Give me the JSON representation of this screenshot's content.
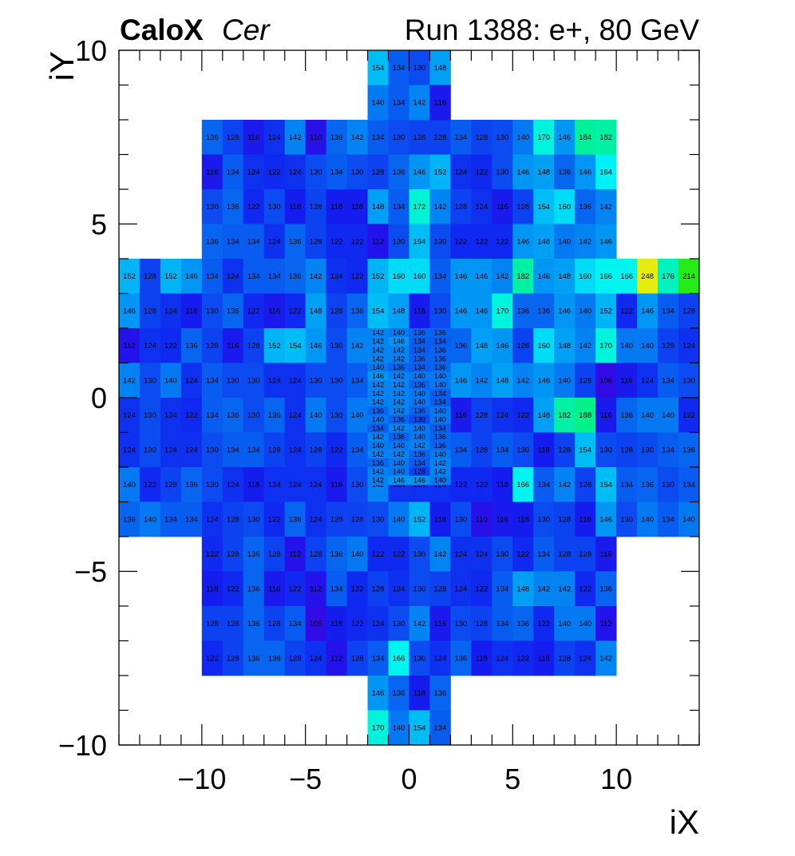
{
  "chart_data": {
    "type": "heatmap",
    "title_bold": "CaloX",
    "title_italic": "Cer",
    "title_right": "Run 1388: e+, 80 GeV",
    "xlabel": "iX",
    "ylabel": "iY",
    "xlim": [
      -14,
      14
    ],
    "ylim": [
      -10,
      10
    ],
    "xticks": [
      -10,
      -5,
      0,
      5,
      10
    ],
    "yticks": [
      -10,
      -5,
      0,
      5,
      10
    ],
    "xtick_labels": [
      "−10",
      "−5",
      "0",
      "5",
      "10"
    ],
    "ytick_labels": [
      "−10",
      "−5",
      "0",
      "5",
      "10"
    ],
    "color_range": [
      100,
      260
    ],
    "large_rows": [
      {
        "y": 7.5,
        "x0": -10,
        "values": [
          136,
          128,
          116,
          124,
          142,
          110,
          136,
          142,
          134,
          130,
          128,
          128,
          134,
          128,
          130,
          140,
          170,
          146,
          184,
          182
        ]
      },
      {
        "y": 6.5,
        "x0": -10,
        "values": [
          116,
          134,
          124,
          122,
          124,
          130,
          134,
          130,
          128,
          136,
          146,
          152,
          124,
          122,
          130,
          146,
          148,
          136,
          146,
          164
        ]
      },
      {
        "y": 5.5,
        "x0": -10,
        "values": [
          130,
          136,
          122,
          130,
          118,
          128,
          118,
          118,
          148,
          134,
          172,
          142,
          128,
          124,
          116,
          128,
          154,
          160,
          136,
          142
        ]
      },
      {
        "y": 4.5,
        "x0": -10,
        "values": [
          136,
          134,
          134,
          124,
          136,
          128,
          122,
          122,
          112,
          130,
          154,
          130,
          122,
          122,
          122,
          146,
          148,
          140,
          142,
          146
        ]
      },
      {
        "y": 3.5,
        "x0": -14,
        "values": [
          152,
          128,
          152,
          146,
          134,
          124,
          134,
          134,
          136,
          142,
          124,
          122,
          152,
          160,
          160,
          134,
          146,
          146,
          142,
          182,
          146,
          148,
          160,
          166,
          166,
          248,
          176,
          214
        ]
      },
      {
        "y": 2.5,
        "x0": -14,
        "values": [
          146,
          128,
          124,
          118,
          130,
          136,
          122,
          116,
          122,
          148,
          128,
          136,
          154,
          148,
          118,
          130,
          146,
          146,
          170,
          136,
          136,
          146,
          140,
          152,
          122,
          146,
          134,
          128
        ]
      },
      {
        "y": 1.5,
        "x0": -14,
        "values": [
          112,
          124,
          122,
          136,
          128,
          116,
          128,
          152,
          154,
          146,
          130,
          142,
          null,
          null,
          null,
          null,
          136,
          148,
          146,
          128,
          160,
          148,
          142,
          170,
          140,
          140,
          128,
          124
        ]
      },
      {
        "y": 0.5,
        "x0": -14,
        "values": [
          142,
          130,
          140,
          124,
          134,
          130,
          130,
          124,
          124,
          130,
          130,
          134,
          null,
          null,
          null,
          null,
          146,
          142,
          148,
          142,
          146,
          140,
          128,
          106,
          116,
          124,
          134,
          130
        ]
      },
      {
        "y": -0.5,
        "x0": -14,
        "values": [
          124,
          130,
          124,
          122,
          134,
          136,
          130,
          136,
          124,
          140,
          130,
          140,
          null,
          null,
          null,
          null,
          116,
          128,
          124,
          122,
          148,
          182,
          188,
          116,
          136,
          140,
          140,
          122
        ]
      },
      {
        "y": -1.5,
        "x0": -14,
        "values": [
          124,
          130,
          124,
          124,
          130,
          134,
          134,
          128,
          124,
          128,
          122,
          134,
          null,
          null,
          null,
          null,
          134,
          128,
          134,
          130,
          118,
          128,
          154,
          130,
          128,
          130,
          134,
          136
        ]
      },
      {
        "y": -2.5,
        "x0": -14,
        "values": [
          140,
          122,
          128,
          136,
          130,
          124,
          118,
          124,
          124,
          124,
          116,
          130,
          142,
          124,
          124,
          124,
          122,
          122,
          118,
          166,
          134,
          142,
          128,
          154,
          134,
          136,
          130,
          134
        ]
      },
      {
        "y": -3.5,
        "x0": -14,
        "values": [
          136,
          140,
          134,
          134,
          124,
          128,
          130,
          122,
          136,
          124,
          128,
          128,
          130,
          140,
          152,
          118,
          130,
          110,
          116,
          118,
          130,
          128,
          118,
          146,
          130,
          140,
          134,
          140
        ]
      },
      {
        "y": -4.5,
        "x0": -10,
        "values": [
          122,
          128,
          136,
          128,
          112,
          128,
          136,
          140,
          122,
          122,
          130,
          142,
          124,
          124,
          130,
          122,
          134,
          128,
          128,
          116
        ]
      },
      {
        "y": -5.5,
        "x0": -10,
        "values": [
          118,
          122,
          136,
          116,
          122,
          112,
          134,
          122,
          128,
          124,
          130,
          128,
          124,
          122,
          134,
          148,
          142,
          142,
          122,
          136
        ]
      },
      {
        "y": -6.5,
        "x0": -10,
        "values": [
          128,
          128,
          136,
          128,
          134,
          106,
          118,
          122,
          124,
          130,
          142,
          116,
          130,
          128,
          134,
          136,
          122,
          140,
          140,
          112
        ]
      },
      {
        "y": -7.5,
        "x0": -10,
        "values": [
          122,
          128,
          136,
          136,
          128,
          124,
          112,
          128,
          134,
          166,
          130,
          124,
          136,
          118,
          124,
          122,
          118,
          128,
          124,
          142
        ]
      },
      {
        "y": 9.5,
        "x0": -2,
        "values": [
          154,
          134,
          130,
          148
        ]
      },
      {
        "y": 8.5,
        "x0": -2,
        "values": [
          140,
          134,
          142,
          116
        ]
      },
      {
        "y": -8.5,
        "x0": -2,
        "values": [
          146,
          136,
          118,
          136
        ]
      },
      {
        "y": -9.5,
        "x0": -2,
        "values": [
          170,
          140,
          154,
          134
        ]
      }
    ],
    "fine_rows": [
      {
        "y": 1.875,
        "values": [
          142,
          140,
          136,
          136
        ]
      },
      {
        "y": 1.625,
        "values": [
          142,
          146,
          134,
          134
        ]
      },
      {
        "y": 1.375,
        "values": [
          142,
          142,
          134,
          136
        ]
      },
      {
        "y": 1.125,
        "values": [
          142,
          142,
          136,
          136
        ]
      },
      {
        "y": 0.875,
        "values": [
          140,
          136,
          134,
          136
        ]
      },
      {
        "y": 0.625,
        "values": [
          146,
          142,
          140,
          140
        ]
      },
      {
        "y": 0.375,
        "values": [
          142,
          142,
          136,
          140
        ]
      },
      {
        "y": 0.125,
        "values": [
          142,
          142,
          140,
          134
        ]
      },
      {
        "y": -0.125,
        "values": [
          142,
          142,
          140,
          134
        ]
      },
      {
        "y": -0.375,
        "values": [
          136,
          142,
          136,
          140
        ]
      },
      {
        "y": -0.625,
        "values": [
          140,
          136,
          130,
          140
        ]
      },
      {
        "y": -0.875,
        "values": [
          134,
          142,
          140,
          134
        ]
      },
      {
        "y": -1.125,
        "values": [
          142,
          136,
          140,
          136
        ]
      },
      {
        "y": -1.375,
        "values": [
          140,
          140,
          142,
          136
        ]
      },
      {
        "y": -1.625,
        "values": [
          142,
          142,
          136,
          140
        ]
      },
      {
        "y": -1.875,
        "values": [
          136,
          140,
          134,
          142
        ]
      },
      {
        "y": -2.125,
        "values": [
          142,
          140,
          128,
          142
        ]
      },
      {
        "y": -2.375,
        "values": [
          142,
          146,
          146,
          140
        ]
      }
    ]
  }
}
